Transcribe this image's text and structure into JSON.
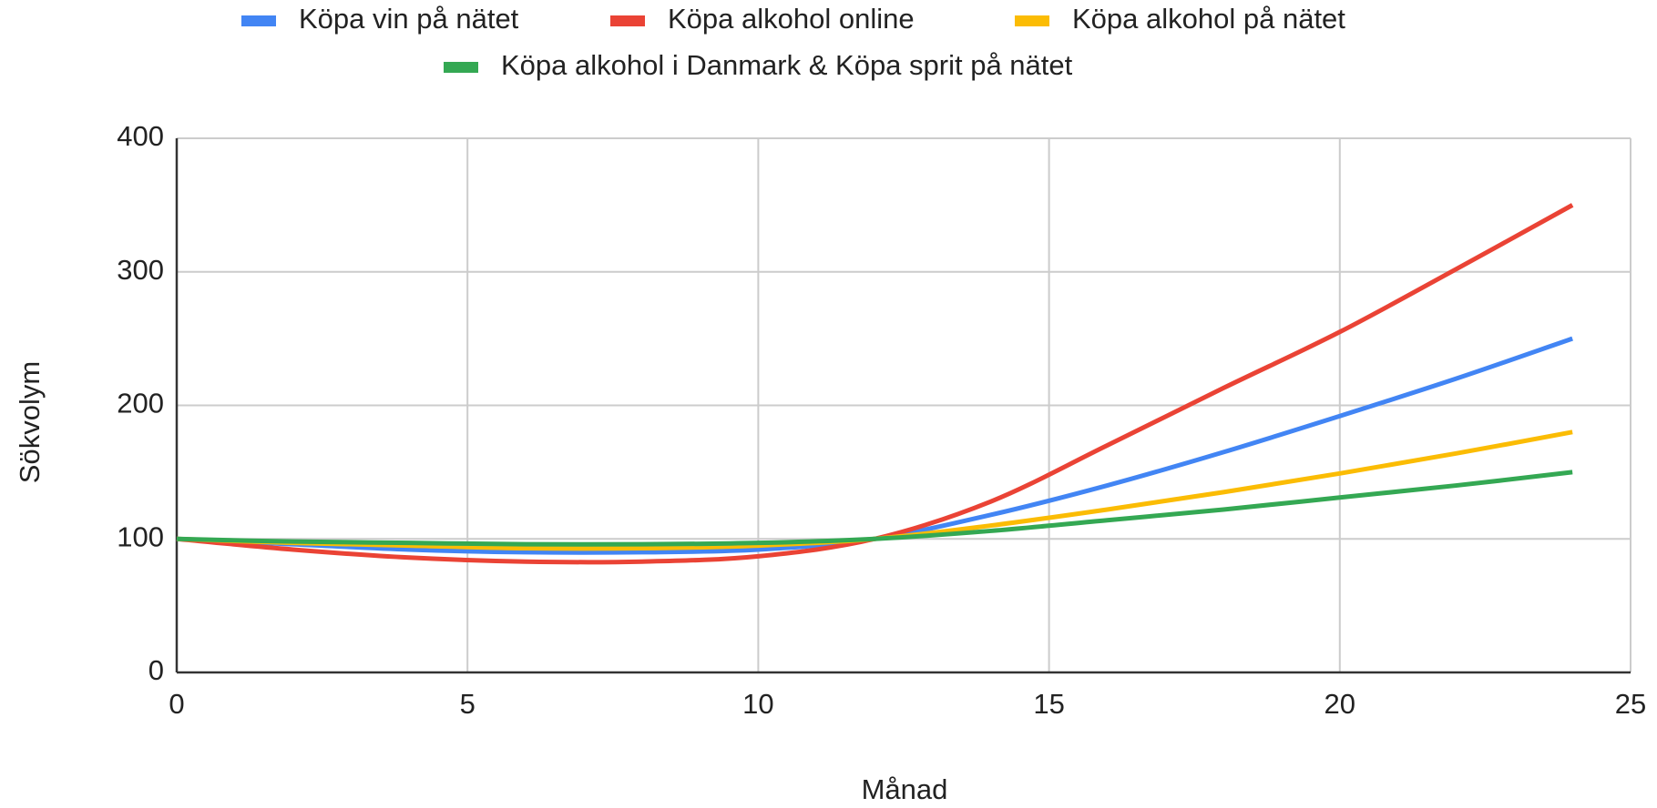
{
  "chart_data": {
    "type": "line",
    "x_label": "Månad",
    "y_label": "Sökvolym",
    "x": [
      0,
      2,
      4,
      6,
      8,
      10,
      12,
      14,
      16,
      18,
      20,
      22,
      24
    ],
    "series": [
      {
        "name": "Köpa vin på nätet",
        "color": "#4285f4",
        "values": [
          100,
          96,
          92,
          90,
          90,
          92,
          100,
          118,
          140,
          165,
          192,
          220,
          250
        ]
      },
      {
        "name": "Köpa alkohol online",
        "color": "#ea4335",
        "values": [
          100,
          92,
          86,
          83,
          83,
          87,
          100,
          128,
          170,
          213,
          255,
          302,
          350
        ]
      },
      {
        "name": "Köpa alkohol på nätet",
        "color": "#fbbc04",
        "values": [
          100,
          97,
          95,
          93,
          93,
          95,
          100,
          110,
          122,
          135,
          149,
          164,
          180
        ]
      },
      {
        "name": "Köpa alkohol i Danmark & Köpa sprit på nätet",
        "color": "#34a853",
        "values": [
          100,
          98,
          97,
          96,
          96,
          97,
          100,
          106,
          114,
          122,
          131,
          140,
          150
        ]
      }
    ],
    "xlim": [
      0,
      25
    ],
    "xticks": [
      0,
      5,
      10,
      15,
      20,
      25
    ],
    "ylim": [
      0,
      400
    ],
    "yticks": [
      0,
      100,
      200,
      300,
      400
    ],
    "grid": true,
    "legend": "top"
  }
}
